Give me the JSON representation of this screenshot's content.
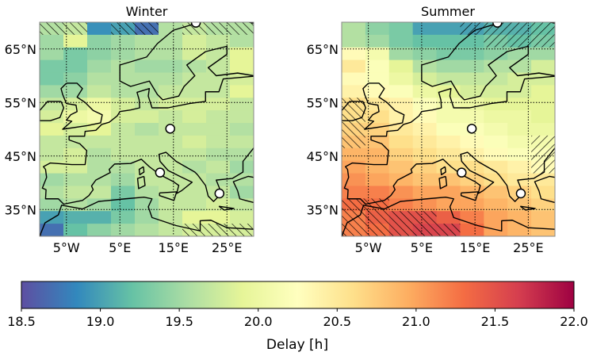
{
  "chart_data": {
    "type": "heatmap",
    "colormap": "Spectral_r",
    "colormap_stops": [
      "#5e4fa2",
      "#3288bd",
      "#66c2a5",
      "#abdda4",
      "#e6f598",
      "#ffffbf",
      "#fee08b",
      "#fdae61",
      "#f46d43",
      "#d53e4f",
      "#9e0142"
    ],
    "lon_range": [
      -10,
      30
    ],
    "lat_range": [
      30,
      70
    ],
    "lon_ticks": [
      -5,
      5,
      15,
      25
    ],
    "lon_tick_labels": [
      "5°W",
      "5°E",
      "15°E",
      "25°E"
    ],
    "lat_ticks": [
      35,
      45,
      55,
      65
    ],
    "lat_tick_labels": [
      "35°N",
      "45°N",
      "55°N",
      "65°N"
    ],
    "grid": "dotted",
    "markers": [
      {
        "lon": 19.2,
        "lat": 69.9
      },
      {
        "lon": 14.4,
        "lat": 50.1
      },
      {
        "lon": 12.5,
        "lat": 41.9
      },
      {
        "lon": 23.6,
        "lat": 38.0
      }
    ],
    "panels": [
      {
        "title": "Winter",
        "values": [
          [
            19.6,
            19.7,
            18.9,
            19.0,
            18.7,
            19.6,
            19.7,
            19.6,
            19.6
          ],
          [
            19.5,
            19.9,
            19.4,
            19.5,
            19.6,
            19.6,
            19.8,
            19.7,
            19.6
          ],
          [
            19.5,
            19.3,
            19.4,
            19.5,
            19.6,
            19.6,
            19.8,
            19.7,
            19.9
          ],
          [
            19.3,
            19.3,
            19.5,
            19.6,
            19.5,
            19.5,
            19.6,
            19.7,
            19.9
          ],
          [
            19.3,
            19.4,
            19.6,
            19.6,
            19.6,
            19.6,
            19.7,
            19.7,
            19.8
          ],
          [
            19.5,
            19.5,
            19.7,
            19.6,
            19.6,
            19.7,
            19.7,
            19.7,
            19.9
          ],
          [
            19.7,
            19.8,
            20.0,
            19.8,
            19.7,
            19.8,
            19.8,
            19.8,
            19.7
          ],
          [
            19.8,
            20.0,
            20.1,
            19.8,
            19.8,
            19.7,
            19.8,
            19.7,
            19.7
          ],
          [
            19.9,
            19.8,
            19.9,
            19.7,
            19.6,
            19.7,
            19.7,
            19.7,
            19.6
          ],
          [
            19.7,
            19.7,
            19.7,
            19.7,
            19.7,
            19.7,
            19.8,
            19.7,
            19.7
          ],
          [
            19.7,
            19.8,
            19.6,
            19.7,
            19.7,
            19.7,
            19.7,
            19.6,
            19.6
          ],
          [
            19.8,
            19.8,
            19.6,
            19.6,
            19.7,
            19.7,
            19.6,
            19.7,
            19.5
          ],
          [
            19.5,
            19.6,
            19.6,
            19.5,
            19.7,
            19.7,
            19.7,
            19.6,
            19.6
          ],
          [
            19.6,
            19.7,
            19.7,
            19.3,
            19.6,
            19.7,
            19.7,
            19.7,
            19.5
          ],
          [
            19.5,
            19.6,
            19.5,
            19.2,
            19.5,
            19.7,
            19.7,
            19.8,
            19.7
          ],
          [
            19.0,
            19.1,
            19.1,
            19.3,
            19.5,
            19.7,
            19.9,
            19.9,
            19.8
          ],
          [
            18.7,
            19.2,
            19.4,
            19.5,
            19.6,
            19.7,
            19.8,
            19.8,
            19.8
          ]
        ],
        "hatched_cells": [
          [
            0,
            0
          ],
          [
            0,
            1
          ],
          [
            0,
            3
          ],
          [
            0,
            4
          ],
          [
            0,
            6
          ],
          [
            0,
            7
          ],
          [
            0,
            8
          ],
          [
            16,
            6
          ],
          [
            16,
            7
          ],
          [
            16,
            8
          ]
        ]
      },
      {
        "title": "Summer",
        "values": [
          [
            19.6,
            19.4,
            19.3,
            19.0,
            19.0,
            19.0,
            19.1,
            19.1,
            19.2
          ],
          [
            19.6,
            19.5,
            19.3,
            19.2,
            19.2,
            19.2,
            19.3,
            19.2,
            19.3
          ],
          [
            20.3,
            20.1,
            19.5,
            19.4,
            19.3,
            19.3,
            19.4,
            19.5,
            19.5
          ],
          [
            20.5,
            20.2,
            19.9,
            19.6,
            19.5,
            19.5,
            19.6,
            19.6,
            19.8
          ],
          [
            20.3,
            20.2,
            20.0,
            19.8,
            19.7,
            19.7,
            19.7,
            19.8,
            19.8
          ],
          [
            20.4,
            20.3,
            20.2,
            20.0,
            19.9,
            19.8,
            19.8,
            19.8,
            19.9
          ],
          [
            20.6,
            20.5,
            20.4,
            20.2,
            20.1,
            20.0,
            19.9,
            19.9,
            19.9
          ],
          [
            20.6,
            20.6,
            20.4,
            20.3,
            20.1,
            20.1,
            20.0,
            20.0,
            19.9
          ],
          [
            20.7,
            20.7,
            20.5,
            20.4,
            20.2,
            20.2,
            20.1,
            20.0,
            20.0
          ],
          [
            20.8,
            20.8,
            20.6,
            20.5,
            20.4,
            20.3,
            20.2,
            20.1,
            20.1
          ],
          [
            20.9,
            20.9,
            20.7,
            20.6,
            20.5,
            20.4,
            20.3,
            20.2,
            20.2
          ],
          [
            21.0,
            20.9,
            20.8,
            20.7,
            20.6,
            20.6,
            20.5,
            20.4,
            20.3
          ],
          [
            21.1,
            21.0,
            20.9,
            20.8,
            20.8,
            20.7,
            20.6,
            20.5,
            20.5
          ],
          [
            21.2,
            21.2,
            21.1,
            21.0,
            21.0,
            20.9,
            20.8,
            20.7,
            20.6
          ],
          [
            21.3,
            21.3,
            21.2,
            21.1,
            21.0,
            21.0,
            20.9,
            20.8,
            20.7
          ],
          [
            21.2,
            21.4,
            21.5,
            21.5,
            21.4,
            21.2,
            21.0,
            20.9,
            20.8
          ],
          [
            21.2,
            21.3,
            21.5,
            21.6,
            21.6,
            21.3,
            21.0,
            20.9,
            20.8
          ]
        ],
        "hatched_cells": [
          [
            0,
            5
          ],
          [
            0,
            6
          ],
          [
            0,
            7
          ],
          [
            0,
            8
          ],
          [
            1,
            6
          ],
          [
            1,
            7
          ],
          [
            1,
            8
          ],
          [
            6,
            0
          ],
          [
            7,
            0
          ],
          [
            8,
            0
          ],
          [
            9,
            0
          ],
          [
            9,
            8
          ],
          [
            10,
            8
          ],
          [
            11,
            8
          ],
          [
            14,
            0
          ],
          [
            14,
            1
          ],
          [
            15,
            0
          ],
          [
            15,
            1
          ],
          [
            15,
            2
          ],
          [
            15,
            3
          ],
          [
            16,
            0
          ],
          [
            16,
            1
          ],
          [
            16,
            2
          ],
          [
            16,
            3
          ],
          [
            16,
            4
          ]
        ]
      }
    ],
    "colorbar": {
      "label": "Delay [h]",
      "range": [
        18.5,
        22.0
      ],
      "ticks": [
        18.5,
        19.0,
        19.5,
        20.0,
        20.5,
        21.0,
        21.5,
        22.0
      ],
      "tick_labels": [
        "18.5",
        "19.0",
        "19.5",
        "20.0",
        "20.5",
        "21.0",
        "21.5",
        "22.0"
      ],
      "orientation": "horizontal"
    }
  }
}
